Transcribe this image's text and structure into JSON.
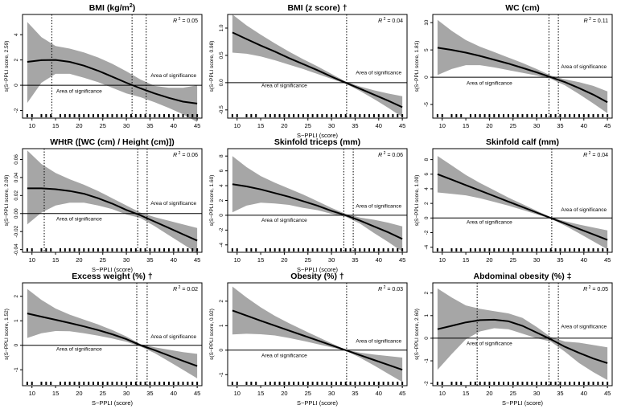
{
  "chart_data": [
    {
      "type": "line",
      "title": "BMI (kg/m",
      "title_sup": "2",
      "title_mark": "",
      "r2_label": "R",
      "r2_exp": "2",
      "r2_value": "= 0.05",
      "xlabel": "",
      "ylabel": "s(S−PPLI score, 2.59)",
      "xlim": [
        8,
        46
      ],
      "ylim": [
        -2.6,
        5.6
      ],
      "xticks": [
        "10",
        "15",
        "20",
        "25",
        "30",
        "35",
        "40",
        "45"
      ],
      "yticks": [
        "-2",
        "0",
        "2",
        "4"
      ],
      "ytick_values": [
        -2,
        0,
        2,
        4
      ],
      "vlines": [
        14.2,
        31.2,
        34.2
      ],
      "x": [
        9,
        12,
        15,
        18,
        21,
        24,
        27,
        30,
        33,
        36,
        39,
        42,
        45
      ],
      "fit": [
        1.85,
        1.98,
        2.0,
        1.85,
        1.55,
        1.15,
        0.68,
        0.2,
        -0.25,
        -0.65,
        -1.0,
        -1.3,
        -1.45
      ],
      "upper": [
        5.0,
        3.8,
        3.1,
        2.9,
        2.6,
        2.2,
        1.7,
        1.1,
        0.45,
        -0.05,
        -0.2,
        -0.2,
        0.0
      ],
      "lower": [
        -1.4,
        0.2,
        0.9,
        0.9,
        0.6,
        0.25,
        -0.2,
        -0.65,
        -0.95,
        -1.35,
        -1.8,
        -2.3,
        -2.9
      ],
      "annotations": [
        {
          "text": "Area of significance",
          "x": 40,
          "y": 0.65
        },
        {
          "text": "Area of significance",
          "x": 20,
          "y": -0.6
        }
      ]
    },
    {
      "type": "line",
      "title": "BMI (z score)",
      "title_sup": "",
      "title_mark": "†",
      "r2_label": "R",
      "r2_exp": "2",
      "r2_value": "= 0.04",
      "xlabel": "S−PPLI (score)",
      "ylabel": "s(S−PPLI score, 0.98)",
      "xlim": [
        8,
        46
      ],
      "ylim": [
        -0.65,
        1.25
      ],
      "xticks": [
        "10",
        "15",
        "20",
        "25",
        "30",
        "35",
        "40",
        "45"
      ],
      "yticks": [
        "-0.5",
        "0.0",
        "0.5",
        "1.0"
      ],
      "ytick_values": [
        -0.5,
        0,
        0.5,
        1.0
      ],
      "vlines": [
        33.2
      ],
      "x": [
        9,
        12,
        15,
        18,
        21,
        24,
        27,
        30,
        33,
        36,
        39,
        42,
        45
      ],
      "fit": [
        0.92,
        0.8,
        0.68,
        0.57,
        0.45,
        0.34,
        0.23,
        0.11,
        0.0,
        -0.11,
        -0.22,
        -0.33,
        -0.45
      ],
      "upper": [
        1.25,
        1.05,
        0.88,
        0.72,
        0.57,
        0.43,
        0.3,
        0.16,
        0.02,
        -0.07,
        -0.14,
        -0.2,
        -0.25
      ],
      "lower": [
        0.55,
        0.53,
        0.48,
        0.41,
        0.33,
        0.25,
        0.16,
        0.07,
        -0.02,
        -0.15,
        -0.3,
        -0.46,
        -0.63
      ],
      "annotations": [
        {
          "text": "Area of significance",
          "x": 40,
          "y": 0.15
        },
        {
          "text": "Area of significance",
          "x": 20,
          "y": -0.08
        }
      ]
    },
    {
      "type": "line",
      "title": "WC (cm)",
      "title_sup": "",
      "title_mark": "",
      "r2_label": "R",
      "r2_exp": "2",
      "r2_value": "= 0.11",
      "xlabel": "",
      "ylabel": "s(S−PPLI score, 1.81)",
      "xlim": [
        8,
        46
      ],
      "ylim": [
        -7.5,
        11.5
      ],
      "xticks": [
        "10",
        "15",
        "20",
        "25",
        "30",
        "35",
        "40",
        "45"
      ],
      "yticks": [
        "-5",
        "0",
        "5",
        "10"
      ],
      "ytick_values": [
        -5,
        0,
        5,
        10
      ],
      "vlines": [
        32.6,
        34.6
      ],
      "x": [
        9,
        12,
        15,
        18,
        21,
        24,
        27,
        30,
        33,
        36,
        39,
        42,
        45
      ],
      "fit": [
        5.4,
        5.0,
        4.5,
        3.9,
        3.2,
        2.5,
        1.7,
        0.9,
        0.0,
        -0.9,
        -2.0,
        -3.2,
        -4.6
      ],
      "upper": [
        10.5,
        8.5,
        6.8,
        5.6,
        4.6,
        3.6,
        2.6,
        1.5,
        0.3,
        -0.4,
        -0.9,
        -1.6,
        -2.6
      ],
      "lower": [
        0.4,
        1.5,
        2.2,
        2.2,
        1.8,
        1.3,
        0.8,
        0.3,
        -0.3,
        -1.5,
        -3.1,
        -4.8,
        -6.6
      ],
      "annotations": [
        {
          "text": "Area of significance",
          "x": 40,
          "y": 1.6
        },
        {
          "text": "Area of significance",
          "x": 20,
          "y": -1.4
        }
      ]
    },
    {
      "type": "line",
      "title": "WHtR ([WC (cm) / Height (cm)])",
      "title_sup": "",
      "title_mark": "",
      "r2_label": "R",
      "r2_exp": "2",
      "r2_value": "= 0.06",
      "xlabel": "S−PPLI (score)",
      "ylabel": "s(S−PPLI score, 2.09)",
      "xlim": [
        8,
        46
      ],
      "ylim": [
        -0.043,
        0.072
      ],
      "xticks": [
        "10",
        "15",
        "20",
        "25",
        "30",
        "35",
        "40",
        "45"
      ],
      "yticks": [
        "-0.04",
        "-0.02",
        "0.00",
        "0.02",
        "0.04",
        "0.06"
      ],
      "ytick_values": [
        -0.04,
        -0.02,
        0,
        0.02,
        0.04,
        0.06
      ],
      "vlines": [
        12.6,
        32.4,
        34.4
      ],
      "x": [
        9,
        12,
        15,
        18,
        21,
        24,
        27,
        30,
        33,
        36,
        39,
        42,
        45
      ],
      "fit": [
        0.028,
        0.028,
        0.027,
        0.025,
        0.022,
        0.017,
        0.011,
        0.004,
        -0.002,
        -0.009,
        -0.016,
        -0.023,
        -0.03
      ],
      "upper": [
        0.07,
        0.055,
        0.045,
        0.038,
        0.032,
        0.025,
        0.017,
        0.009,
        0.001,
        -0.004,
        -0.008,
        -0.012,
        -0.016
      ],
      "lower": [
        -0.012,
        0.001,
        0.009,
        0.012,
        0.012,
        0.009,
        0.005,
        -0.001,
        -0.005,
        -0.014,
        -0.024,
        -0.034,
        -0.044
      ],
      "annotations": [
        {
          "text": "Area of significance",
          "x": 40,
          "y": 0.0095
        },
        {
          "text": "Area of significance",
          "x": 20,
          "y": -0.008
        }
      ]
    },
    {
      "type": "line",
      "title": "Skinfold triceps (mm)",
      "title_sup": "",
      "title_mark": "",
      "r2_label": "R",
      "r2_exp": "2",
      "r2_value": "= 0.06",
      "xlabel": "S−PPLI (score)",
      "ylabel": "s(S−PPLI score, 1.60)",
      "xlim": [
        8,
        46
      ],
      "ylim": [
        -5.0,
        9.0
      ],
      "xticks": [
        "10",
        "15",
        "20",
        "25",
        "30",
        "35",
        "40",
        "45"
      ],
      "yticks": [
        "-4",
        "-2",
        "0",
        "2",
        "4",
        "6",
        "8"
      ],
      "ytick_values": [
        -4,
        -2,
        0,
        2,
        4,
        6,
        8
      ],
      "vlines": [
        32.6,
        34.6
      ],
      "x": [
        9,
        12,
        15,
        18,
        21,
        24,
        27,
        30,
        33,
        36,
        39,
        42,
        45
      ],
      "fit": [
        4.2,
        3.9,
        3.5,
        3.0,
        2.5,
        1.9,
        1.3,
        0.6,
        0.0,
        -0.7,
        -1.5,
        -2.3,
        -3.2
      ],
      "upper": [
        8.0,
        6.5,
        5.3,
        4.4,
        3.6,
        2.8,
        1.9,
        1.0,
        0.2,
        -0.3,
        -0.6,
        -1.0,
        -1.5
      ],
      "lower": [
        0.4,
        1.3,
        1.7,
        1.6,
        1.4,
        1.0,
        0.7,
        0.2,
        -0.2,
        -1.1,
        -2.4,
        -3.6,
        -4.9
      ],
      "annotations": [
        {
          "text": "Area of significance",
          "x": 40,
          "y": 1.0
        },
        {
          "text": "Area of significance",
          "x": 20,
          "y": -0.9
        }
      ]
    },
    {
      "type": "line",
      "title": "Skinfold calf (mm)",
      "title_sup": "",
      "title_mark": "",
      "r2_label": "R",
      "r2_exp": "2",
      "r2_value": "= 0.04",
      "xlabel": "",
      "ylabel": "s(S−PPLI score, 1.00)",
      "xlim": [
        8,
        46
      ],
      "ylim": [
        -4.7,
        9.5
      ],
      "xticks": [
        "10",
        "15",
        "20",
        "25",
        "30",
        "35",
        "40",
        "45"
      ],
      "yticks": [
        "-4",
        "-2",
        "0",
        "2",
        "4",
        "6",
        "8"
      ],
      "ytick_values": [
        -4,
        -2,
        0,
        2,
        4,
        6,
        8
      ],
      "vlines": [
        33.2
      ],
      "x": [
        9,
        12,
        15,
        18,
        21,
        24,
        27,
        30,
        33,
        36,
        39,
        42,
        45
      ],
      "fit": [
        6.0,
        5.25,
        4.5,
        3.75,
        3.0,
        2.25,
        1.5,
        0.75,
        0.0,
        -0.75,
        -1.5,
        -2.25,
        -3.0
      ],
      "upper": [
        8.5,
        7.2,
        5.9,
        4.8,
        3.8,
        2.8,
        1.9,
        1.0,
        0.1,
        -0.45,
        -0.9,
        -1.3,
        -1.7
      ],
      "lower": [
        3.5,
        3.3,
        3.1,
        2.7,
        2.2,
        1.7,
        1.1,
        0.5,
        -0.1,
        -1.05,
        -2.1,
        -3.2,
        -4.3
      ],
      "annotations": [
        {
          "text": "Area of significance",
          "x": 40,
          "y": 0.9
        },
        {
          "text": "Area of significance",
          "x": 20,
          "y": -0.8
        }
      ]
    },
    {
      "type": "line",
      "title": "Excess weight (%)",
      "title_sup": "",
      "title_mark": "†",
      "r2_label": "R",
      "r2_exp": "2",
      "r2_value": "= 0.02",
      "xlabel": "S−PPLI (score)",
      "ylabel": "s(S−PPLI score, 1.52)",
      "xlim": [
        8,
        46
      ],
      "ylim": [
        -1.65,
        2.55
      ],
      "xticks": [
        "10",
        "15",
        "20",
        "25",
        "30",
        "35",
        "40",
        "45"
      ],
      "yticks": [
        "-1",
        "0",
        "1",
        "2"
      ],
      "ytick_values": [
        -1,
        0,
        1,
        2
      ],
      "vlines": [
        32.2,
        34.4
      ],
      "x": [
        9,
        12,
        15,
        18,
        21,
        24,
        27,
        30,
        33,
        36,
        39,
        42,
        45
      ],
      "fit": [
        1.3,
        1.17,
        1.04,
        0.91,
        0.77,
        0.62,
        0.45,
        0.25,
        0.0,
        -0.2,
        -0.42,
        -0.64,
        -0.85
      ],
      "upper": [
        2.3,
        1.85,
        1.5,
        1.25,
        1.05,
        0.85,
        0.62,
        0.36,
        0.05,
        -0.08,
        -0.18,
        -0.28,
        -0.35
      ],
      "lower": [
        0.3,
        0.49,
        0.58,
        0.57,
        0.49,
        0.39,
        0.28,
        0.14,
        -0.05,
        -0.32,
        -0.66,
        -1.0,
        -1.35
      ],
      "annotations": [
        {
          "text": "Area of significance",
          "x": 40,
          "y": 0.28
        },
        {
          "text": "Area of significance",
          "x": 20,
          "y": -0.22
        }
      ]
    },
    {
      "type": "line",
      "title": "Obesity (%)",
      "title_sup": "",
      "title_mark": "†",
      "r2_label": "R",
      "r2_exp": "2",
      "r2_value": "= 0.03",
      "xlabel": "S−PPLI (score)",
      "ylabel": "s(S−PPLI score, 0.92)",
      "xlim": [
        8,
        46
      ],
      "ylim": [
        -1.45,
        2.75
      ],
      "xticks": [
        "10",
        "15",
        "20",
        "25",
        "30",
        "35",
        "40",
        "45"
      ],
      "yticks": [
        "-1",
        "0",
        "1",
        "2"
      ],
      "ytick_values": [
        -1,
        0,
        1,
        2
      ],
      "vlines": [
        33.2
      ],
      "x": [
        9,
        12,
        15,
        18,
        21,
        24,
        27,
        30,
        33,
        36,
        39,
        42,
        45
      ],
      "fit": [
        1.62,
        1.41,
        1.2,
        1.0,
        0.8,
        0.6,
        0.4,
        0.2,
        0.0,
        -0.2,
        -0.4,
        -0.6,
        -0.8
      ],
      "upper": [
        2.6,
        2.15,
        1.75,
        1.4,
        1.1,
        0.82,
        0.55,
        0.28,
        0.02,
        -0.1,
        -0.18,
        -0.24,
        -0.3
      ],
      "lower": [
        0.64,
        0.67,
        0.65,
        0.6,
        0.5,
        0.38,
        0.25,
        0.12,
        -0.02,
        -0.3,
        -0.62,
        -0.96,
        -1.3
      ],
      "annotations": [
        {
          "text": "Area of significance",
          "x": 40,
          "y": 0.3
        },
        {
          "text": "Area of significance",
          "x": 20,
          "y": -0.28
        }
      ]
    },
    {
      "type": "line",
      "title": "Abdominal obesity (%)",
      "title_sup": "",
      "title_mark": "‡",
      "r2_label": "R",
      "r2_exp": "2",
      "r2_value": "= 0.05",
      "xlabel": "S−PPLI (score)",
      "ylabel": "s(S−PPLI score, 2.60)",
      "xlim": [
        8,
        46
      ],
      "ylim": [
        -2.1,
        2.45
      ],
      "xticks": [
        "10",
        "15",
        "20",
        "25",
        "30",
        "35",
        "40",
        "45"
      ],
      "yticks": [
        "-2",
        "-1",
        "0",
        "1",
        "2"
      ],
      "ytick_values": [
        -2,
        -1,
        0,
        1,
        2
      ],
      "vlines": [
        17.4,
        32.6,
        34.6
      ],
      "x": [
        9,
        12,
        15,
        18,
        21,
        24,
        27,
        30,
        33,
        36,
        39,
        42,
        45
      ],
      "fit": [
        0.4,
        0.55,
        0.7,
        0.8,
        0.82,
        0.75,
        0.55,
        0.25,
        -0.05,
        -0.38,
        -0.65,
        -0.9,
        -1.1
      ],
      "upper": [
        2.2,
        1.8,
        1.45,
        1.3,
        1.2,
        1.1,
        0.9,
        0.5,
        0.05,
        -0.15,
        -0.2,
        -0.3,
        -0.4
      ],
      "lower": [
        -1.4,
        -0.7,
        -0.05,
        0.3,
        0.44,
        0.4,
        0.2,
        0.0,
        -0.15,
        -0.6,
        -1.1,
        -1.5,
        -1.85
      ],
      "annotations": [
        {
          "text": "Area of significance",
          "x": 40,
          "y": 0.45
        },
        {
          "text": "Area of significance",
          "x": 20,
          "y": -0.3
        }
      ]
    }
  ]
}
